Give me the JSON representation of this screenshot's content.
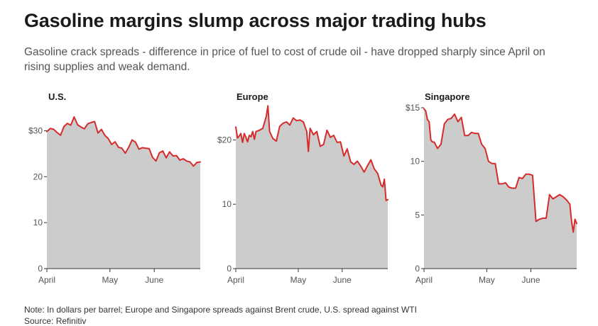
{
  "title": "Gasoline margins slump across major trading hubs",
  "subtitle": "Gasoline crack spreads - difference in price of fuel to cost of crude oil - have dropped sharply since April on rising supplies and weak demand.",
  "note": "Note: In dollars per barrel; Europe and Singapore spreads against Brent crude, U.S. spread against WTI",
  "source": "Source: Refinitiv",
  "colors": {
    "line": "#d62b2b",
    "fill": "#cccccc",
    "axis": "#333333",
    "text": "#555555"
  },
  "chart_data": [
    {
      "type": "area",
      "title": "U.S.",
      "ylim": [
        0,
        35
      ],
      "yticks": [
        0,
        10,
        20,
        30
      ],
      "ytick_labels": [
        "0",
        "10",
        "20",
        "$30"
      ],
      "xlim": [
        0,
        90
      ],
      "xticks": [
        0,
        37,
        63
      ],
      "xtick_labels": [
        "April",
        "May",
        "June"
      ],
      "x": [
        0,
        2,
        4,
        6,
        8,
        10,
        12,
        14,
        16,
        18,
        20,
        22,
        24,
        26,
        28,
        30,
        32,
        34,
        36,
        38,
        40,
        42,
        44,
        46,
        48,
        50,
        52,
        54,
        56,
        58,
        60,
        62,
        64,
        66,
        68,
        70,
        72,
        74,
        76,
        78,
        80,
        82,
        84,
        86,
        88,
        90
      ],
      "y": [
        29.8,
        30.5,
        30.3,
        29.6,
        29.0,
        30.9,
        31.6,
        31.2,
        33.0,
        31.3,
        30.8,
        30.4,
        31.5,
        31.8,
        32.0,
        29.5,
        30.3,
        29.0,
        28.3,
        27.0,
        27.6,
        26.4,
        26.2,
        25.1,
        26.4,
        28.0,
        27.5,
        26.0,
        26.3,
        26.2,
        26.1,
        24.2,
        23.4,
        25.2,
        25.6,
        24.1,
        25.4,
        24.5,
        24.6,
        23.6,
        23.9,
        23.4,
        23.2,
        22.3,
        23.1,
        23.2
      ]
    },
    {
      "type": "area",
      "title": "Europe",
      "ylim": [
        0,
        25
      ],
      "yticks": [
        0,
        10,
        20
      ],
      "ytick_labels": [
        "0",
        "10",
        "$20"
      ],
      "xlim": [
        0,
        90
      ],
      "xticks": [
        0,
        37,
        63
      ],
      "xtick_labels": [
        "April",
        "May",
        "June"
      ],
      "x": [
        0,
        1,
        2,
        3,
        4,
        5,
        6,
        7,
        8,
        9,
        10,
        11,
        12,
        14,
        16,
        18,
        19,
        20,
        22,
        24,
        26,
        28,
        30,
        32,
        34,
        36,
        38,
        40,
        42,
        43,
        44,
        46,
        48,
        50,
        52,
        54,
        56,
        58,
        60,
        62,
        64,
        66,
        68,
        70,
        72,
        74,
        76,
        78,
        80,
        82,
        84,
        86,
        87,
        88,
        89,
        90
      ],
      "y": [
        22.0,
        20.3,
        20.6,
        21.0,
        19.6,
        21.0,
        20.4,
        19.7,
        20.7,
        20.5,
        21.3,
        20.1,
        21.3,
        21.5,
        21.8,
        23.6,
        25.3,
        21.3,
        20.2,
        19.8,
        22.1,
        22.6,
        22.8,
        22.3,
        23.4,
        23.0,
        23.1,
        22.8,
        21.3,
        18.2,
        21.8,
        20.8,
        21.3,
        19.0,
        19.3,
        21.5,
        20.4,
        20.7,
        19.6,
        19.7,
        17.5,
        18.6,
        16.6,
        16.2,
        16.7,
        15.9,
        15.0,
        16.0,
        16.9,
        15.5,
        14.8,
        13.0,
        12.7,
        13.9,
        10.6,
        10.7
      ]
    },
    {
      "type": "area",
      "title": "Singapore",
      "ylim": [
        0,
        15
      ],
      "yticks": [
        0,
        5,
        10,
        15
      ],
      "ytick_labels": [
        "0",
        "5",
        "10",
        "$15"
      ],
      "xlim": [
        0,
        90
      ],
      "xticks": [
        0,
        37,
        63
      ],
      "xtick_labels": [
        "April",
        "May",
        "June"
      ],
      "x": [
        0,
        1,
        2,
        3,
        4,
        5,
        6,
        8,
        10,
        12,
        14,
        16,
        18,
        20,
        22,
        24,
        26,
        28,
        30,
        32,
        34,
        36,
        38,
        40,
        42,
        44,
        46,
        48,
        50,
        52,
        54,
        56,
        58,
        60,
        62,
        64,
        66,
        68,
        70,
        71,
        72,
        74,
        76,
        78,
        80,
        81,
        82,
        84,
        86,
        87,
        88,
        89,
        90
      ],
      "y": [
        14.9,
        14.7,
        13.9,
        13.7,
        12.0,
        11.8,
        11.8,
        11.2,
        11.6,
        13.5,
        13.9,
        14.0,
        14.4,
        13.7,
        14.1,
        12.4,
        12.4,
        12.7,
        12.6,
        12.6,
        11.6,
        11.2,
        10.0,
        9.8,
        9.8,
        7.9,
        7.9,
        8.0,
        7.6,
        7.5,
        7.5,
        8.5,
        8.4,
        8.8,
        8.8,
        8.7,
        4.4,
        4.6,
        4.7,
        4.7,
        4.7,
        6.9,
        6.5,
        6.7,
        6.9,
        6.8,
        6.7,
        6.4,
        6.0,
        4.4,
        3.4,
        4.6,
        4.2
      ]
    }
  ]
}
